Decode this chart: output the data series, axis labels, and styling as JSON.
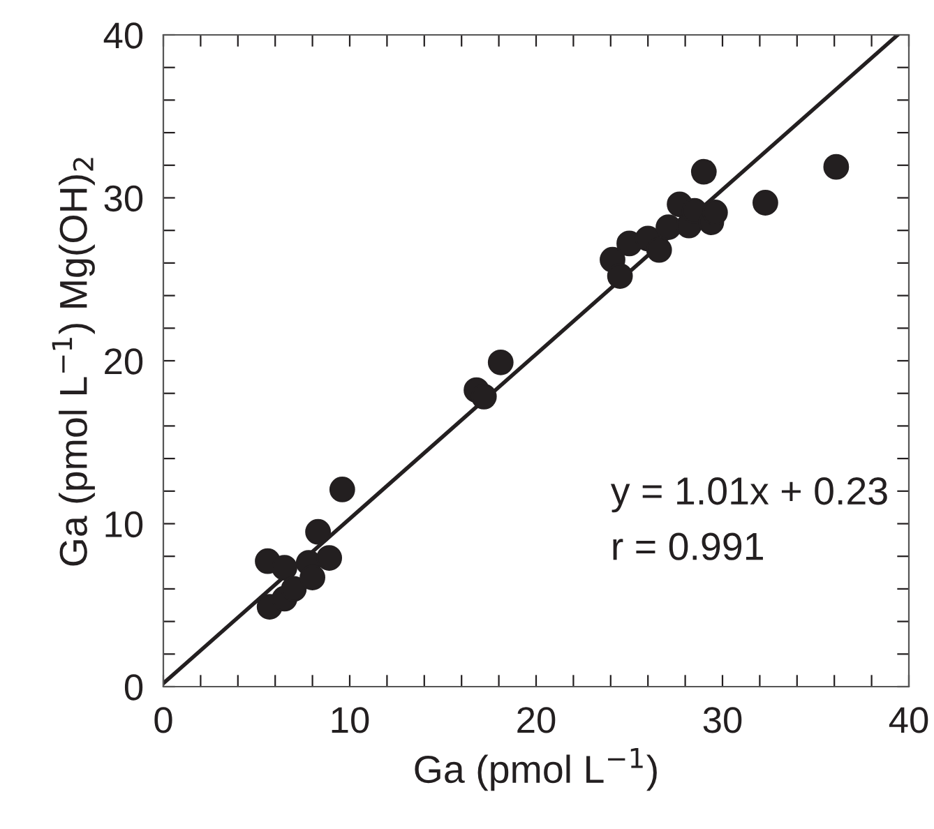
{
  "chart_data": {
    "type": "scatter",
    "xlabel": "Ga (pmol L$^{−1}$)",
    "ylabel": "Ga (pmol L$^{−1}$) Mg(OH)$_{2}$",
    "xlim": [
      0,
      40
    ],
    "ylim": [
      0,
      40
    ],
    "xticks": [
      0,
      {
        "value": 2,
        "label": null
      },
      {
        "value": 4,
        "label": null
      },
      {
        "value": 6,
        "label": null
      },
      {
        "value": 8,
        "label": null
      },
      10,
      {
        "value": 12,
        "label": null
      },
      {
        "value": 14,
        "label": null
      },
      {
        "value": 16,
        "label": null
      },
      {
        "value": 18,
        "label": null
      },
      20,
      {
        "value": 22,
        "label": null
      },
      {
        "value": 24,
        "label": null
      },
      {
        "value": 26,
        "label": null
      },
      {
        "value": 28,
        "label": null
      },
      30,
      {
        "value": 32,
        "label": null
      },
      {
        "value": 34,
        "label": null
      },
      {
        "value": 36,
        "label": null
      },
      {
        "value": 38,
        "label": null
      },
      40
    ],
    "yticks": [
      0,
      {
        "value": 2,
        "label": null
      },
      {
        "value": 4,
        "label": null
      },
      {
        "value": 6,
        "label": null
      },
      {
        "value": 8,
        "label": null
      },
      10,
      {
        "value": 12,
        "label": null
      },
      {
        "value": 14,
        "label": null
      },
      {
        "value": 16,
        "label": null
      },
      {
        "value": 18,
        "label": null
      },
      20,
      {
        "value": 22,
        "label": null
      },
      {
        "value": 24,
        "label": null
      },
      {
        "value": 26,
        "label": null
      },
      {
        "value": 28,
        "label": null
      },
      30,
      {
        "value": 32,
        "label": null
      },
      {
        "value": 34,
        "label": null
      },
      {
        "value": 36,
        "label": null
      },
      {
        "value": 38,
        "label": null
      },
      40
    ],
    "grid": false,
    "annotations": [
      "y = 1.01x + 0.23",
      "r = 0.991"
    ],
    "series": [
      {
        "color": "#231f20",
        "marker": "circle",
        "x": [
          5.6,
          5.7,
          6.5,
          6.5,
          7.0,
          7.8,
          8.0,
          8.3,
          8.9,
          9.6,
          16.8,
          17.2,
          18.1,
          24.1,
          24.5,
          25.0,
          26.0,
          26.6,
          27.1,
          27.7,
          28.2,
          28.5,
          29.0,
          29.4,
          29.6,
          32.3,
          36.1
        ],
        "values": [
          7.7,
          4.9,
          5.4,
          7.3,
          6.0,
          7.6,
          6.7,
          9.5,
          7.9,
          12.1,
          18.2,
          17.8,
          19.9,
          26.2,
          25.2,
          27.2,
          27.5,
          26.8,
          28.2,
          29.6,
          28.3,
          29.2,
          31.6,
          28.5,
          29.1,
          29.7,
          31.9
        ]
      },
      {
        "type": "line",
        "color": "#231f20",
        "line_style": "solid",
        "x": [
          0,
          39.4
        ],
        "values": [
          0.2,
          40
        ]
      }
    ]
  }
}
